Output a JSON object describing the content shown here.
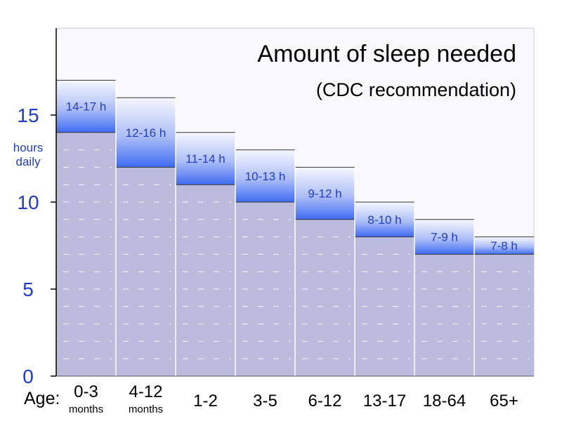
{
  "chart_data": {
    "type": "bar",
    "title": "Amount of sleep needed",
    "subtitle": "(CDC recommendation)",
    "ylabel": "hours daily",
    "ylabel_lines": [
      "hours",
      "daily"
    ],
    "xlabel": "Age:",
    "ylim": [
      0,
      20
    ],
    "yticks": [
      0,
      5,
      10,
      15
    ],
    "grid": true,
    "categories": [
      "0-3",
      "4-12",
      "1-2",
      "3-5",
      "6-12",
      "13-17",
      "18-64",
      "65+"
    ],
    "category_units": [
      "months",
      "months",
      "",
      "",
      "",
      "",
      "",
      ""
    ],
    "series": [
      {
        "min": [
          14,
          12,
          11,
          10,
          9,
          8,
          7,
          7
        ],
        "max": [
          17,
          16,
          14,
          13,
          12,
          10,
          9,
          8
        ],
        "labels": [
          "14-17 h",
          "12-16 h",
          "11-14 h",
          "10-13 h",
          "9-12 h",
          "8-10 h",
          "7-9 h",
          "7-8 h"
        ]
      }
    ],
    "colors": {
      "base_fill": "#babbdd",
      "range_top": "#f6f7fd",
      "range_bottom": "#3f6bf2",
      "plot_bg": "#f8f8fd",
      "accent_text": "#1e3ccc"
    }
  }
}
